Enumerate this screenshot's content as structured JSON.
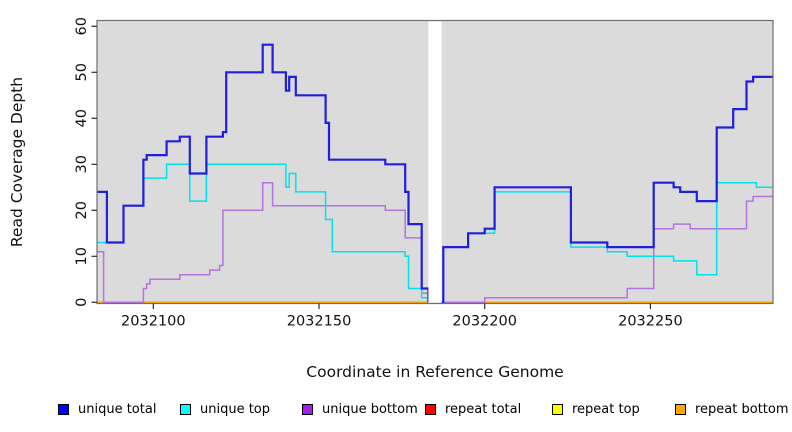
{
  "chart_data": {
    "type": "line",
    "subtype": "step-coverage",
    "title": "",
    "xlabel": "Coordinate in Reference Genome",
    "ylabel": "Read Coverage Depth",
    "xlim": [
      2032083,
      2032287
    ],
    "ylim": [
      0,
      60
    ],
    "xticks": [
      2032100,
      2032150,
      2032200,
      2032250
    ],
    "yticks": [
      0,
      10,
      20,
      30,
      40,
      50,
      60
    ],
    "grid": false,
    "panel_bg": "#dbdbdb",
    "border_color": "#6e6e6e",
    "axis_color": "#2b2b2b",
    "gap": {
      "start": 2032183,
      "end": 2032187,
      "color": "#ffffff"
    },
    "series": [
      {
        "name": "repeat total",
        "color": "#e60000",
        "width": 1.2,
        "segments": [
          [
            [
              2032083,
              0
            ],
            [
              2032183,
              0
            ]
          ],
          [
            [
              2032187,
              0
            ],
            [
              2032287,
              0
            ]
          ]
        ]
      },
      {
        "name": "repeat top",
        "color": "#ffff00",
        "width": 1.2,
        "segments": [
          [
            [
              2032083,
              0
            ],
            [
              2032183,
              0
            ]
          ],
          [
            [
              2032187,
              0
            ],
            [
              2032287,
              0
            ]
          ]
        ]
      },
      {
        "name": "repeat bottom",
        "color": "#ffa500",
        "width": 1.6,
        "segments": [
          [
            [
              2032083,
              0
            ],
            [
              2032183,
              0
            ]
          ],
          [
            [
              2032187,
              0
            ],
            [
              2032287,
              0
            ]
          ]
        ]
      },
      {
        "name": "unique bottom",
        "color": "#b473e0",
        "width": 1.5,
        "segments": [
          [
            [
              2032083,
              11
            ],
            [
              2032085,
              0
            ],
            [
              2032097,
              3
            ],
            [
              2032098,
              4
            ],
            [
              2032099,
              5
            ],
            [
              2032108,
              6
            ],
            [
              2032117,
              7
            ],
            [
              2032120,
              8
            ],
            [
              2032121,
              20
            ],
            [
              2032133,
              26
            ],
            [
              2032136,
              21
            ],
            [
              2032170,
              20
            ],
            [
              2032176,
              14
            ],
            [
              2032181,
              2
            ],
            [
              2032183,
              0
            ]
          ],
          [
            [
              2032187,
              0
            ],
            [
              2032200,
              1
            ],
            [
              2032243,
              3
            ],
            [
              2032251,
              16
            ],
            [
              2032257,
              17
            ],
            [
              2032262,
              16
            ],
            [
              2032279,
              22
            ],
            [
              2032281,
              23
            ],
            [
              2032287,
              23
            ]
          ]
        ]
      },
      {
        "name": "unique top",
        "color": "#00e2ee",
        "width": 1.5,
        "segments": [
          [
            [
              2032083,
              13
            ],
            [
              2032091,
              21
            ],
            [
              2032097,
              27
            ],
            [
              2032104,
              30
            ],
            [
              2032111,
              22
            ],
            [
              2032116,
              30
            ],
            [
              2032140,
              25
            ],
            [
              2032141,
              28
            ],
            [
              2032143,
              24
            ],
            [
              2032152,
              18
            ],
            [
              2032154,
              11
            ],
            [
              2032176,
              10
            ],
            [
              2032177,
              3
            ],
            [
              2032181,
              1
            ],
            [
              2032183,
              0
            ]
          ],
          [
            [
              2032187,
              0
            ],
            [
              2032187.5,
              12
            ],
            [
              2032195,
              15
            ],
            [
              2032203,
              24
            ],
            [
              2032226,
              12
            ],
            [
              2032237,
              11
            ],
            [
              2032243,
              10
            ],
            [
              2032257,
              9
            ],
            [
              2032264,
              6
            ],
            [
              2032270,
              26
            ],
            [
              2032282,
              25
            ],
            [
              2032287,
              25
            ]
          ]
        ]
      },
      {
        "name": "unique total",
        "color": "#1f1fe0",
        "width": 2.2,
        "segments": [
          [
            [
              2032083,
              24
            ],
            [
              2032086,
              13
            ],
            [
              2032091,
              21
            ],
            [
              2032097,
              31
            ],
            [
              2032098,
              32
            ],
            [
              2032104,
              35
            ],
            [
              2032108,
              36
            ],
            [
              2032111,
              28
            ],
            [
              2032116,
              36
            ],
            [
              2032121,
              37
            ],
            [
              2032122,
              50
            ],
            [
              2032133,
              56
            ],
            [
              2032136,
              50
            ],
            [
              2032140,
              46
            ],
            [
              2032141,
              49
            ],
            [
              2032143,
              45
            ],
            [
              2032152,
              39
            ],
            [
              2032153,
              31
            ],
            [
              2032170,
              30
            ],
            [
              2032176,
              24
            ],
            [
              2032177,
              17
            ],
            [
              2032181,
              3
            ],
            [
              2032183,
              0
            ]
          ],
          [
            [
              2032187,
              0
            ],
            [
              2032187.5,
              12
            ],
            [
              2032195,
              15
            ],
            [
              2032200,
              16
            ],
            [
              2032203,
              25
            ],
            [
              2032226,
              13
            ],
            [
              2032237,
              12
            ],
            [
              2032251,
              26
            ],
            [
              2032257,
              25
            ],
            [
              2032259,
              24
            ],
            [
              2032264,
              22
            ],
            [
              2032270,
              38
            ],
            [
              2032275,
              42
            ],
            [
              2032279,
              48
            ],
            [
              2032281,
              49
            ],
            [
              2032287,
              49
            ]
          ]
        ]
      }
    ],
    "legend_position": "bottom"
  },
  "legend": {
    "items": [
      {
        "label": "unique total",
        "color": "#0000ff"
      },
      {
        "label": "unique top",
        "color": "#00ffff"
      },
      {
        "label": "unique bottom",
        "color": "#a020f0"
      },
      {
        "label": "repeat total",
        "color": "#ff0000"
      },
      {
        "label": "repeat top",
        "color": "#ffff00"
      },
      {
        "label": "repeat bottom",
        "color": "#ffa500"
      }
    ]
  }
}
